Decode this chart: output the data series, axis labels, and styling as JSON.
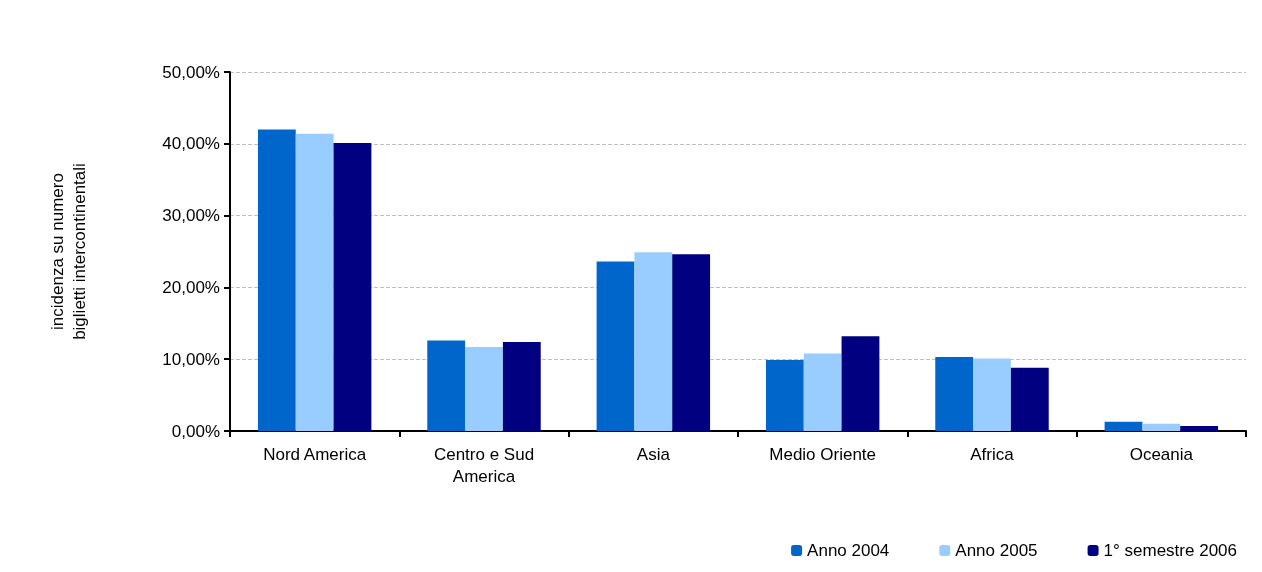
{
  "chart_data": {
    "type": "bar",
    "ylabel": "incidenza su numero\nbiglietti intercontinentali",
    "categories": [
      "Nord America",
      "Centro e Sud\nAmerica",
      "Asia",
      "Medio Oriente",
      "Africa",
      "Oceania"
    ],
    "series": [
      {
        "name": "Anno 2004",
        "color": "#0066cc",
        "values": [
          42.0,
          12.6,
          23.6,
          9.9,
          10.3,
          1.3
        ]
      },
      {
        "name": "Anno 2005",
        "color": "#99ccff",
        "values": [
          41.4,
          11.7,
          24.9,
          10.8,
          10.1,
          1.0
        ]
      },
      {
        "name": "1° semestre 2006",
        "color": "#000080",
        "values": [
          40.1,
          12.4,
          24.6,
          13.2,
          8.8,
          0.7
        ]
      }
    ],
    "ylim": [
      0,
      50
    ],
    "yticks": [
      {
        "value": 0,
        "label": "0,00%"
      },
      {
        "value": 10,
        "label": "10,00%"
      },
      {
        "value": 20,
        "label": "20,00%"
      },
      {
        "value": 30,
        "label": "30,00%"
      },
      {
        "value": 40,
        "label": "40,00%"
      },
      {
        "value": 50,
        "label": "50,00%"
      }
    ],
    "grid": "y",
    "legend": "bottom right"
  }
}
